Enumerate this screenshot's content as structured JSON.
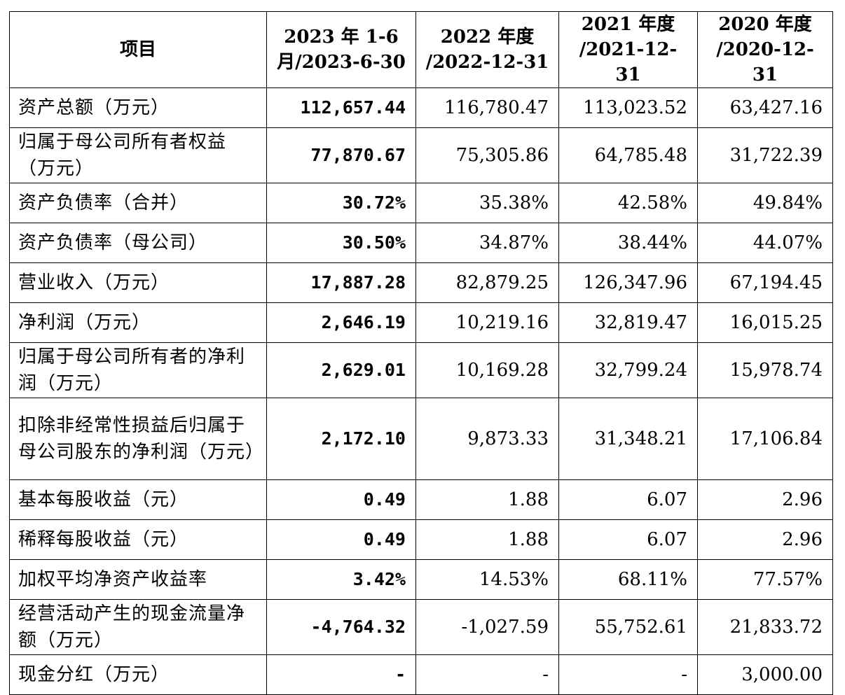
{
  "headers": {
    "item": "项目",
    "c1": [
      "2023 年 1-6",
      "月/2023-6-30"
    ],
    "c2": [
      "2022 年度",
      "/2022-12-31"
    ],
    "c3": [
      "2021 年度",
      "/2021-12-31"
    ],
    "c4": [
      "2020 年度",
      "/2020-12-31"
    ]
  },
  "rows": [
    {
      "label": "资产总额（万元）",
      "v1": "112,657.44",
      "v2": "116,780.47",
      "v3": "113,023.52",
      "v4": "63,427.16"
    },
    {
      "label": "归属于母公司所有者权益（万元）",
      "v1": "77,870.67",
      "v2": "75,305.86",
      "v3": "64,785.48",
      "v4": "31,722.39"
    },
    {
      "label": "资产负债率（合并）",
      "v1": "30.72%",
      "v2": "35.38%",
      "v3": "42.58%",
      "v4": "49.84%"
    },
    {
      "label": "资产负债率（母公司）",
      "v1": "30.50%",
      "v2": "34.87%",
      "v3": "38.44%",
      "v4": "44.07%"
    },
    {
      "label": "营业收入（万元）",
      "v1": "17,887.28",
      "v2": "82,879.25",
      "v3": "126,347.96",
      "v4": "67,194.45"
    },
    {
      "label": "净利润（万元）",
      "v1": "2,646.19",
      "v2": "10,219.16",
      "v3": "32,819.47",
      "v4": "16,015.25"
    },
    {
      "label": "归属于母公司所有者的净利润（万元）",
      "v1": "2,629.01",
      "v2": "10,169.28",
      "v3": "32,799.24",
      "v4": "15,978.74"
    },
    {
      "label": "扣除非经常性损益后归属于母公司股东的净利润（万元）",
      "v1": "2,172.10",
      "v2": "9,873.33",
      "v3": "31,348.21",
      "v4": "17,106.84"
    },
    {
      "label": "基本每股收益（元）",
      "v1": "0.49",
      "v2": "1.88",
      "v3": "6.07",
      "v4": "2.96"
    },
    {
      "label": "稀释每股收益（元）",
      "v1": "0.49",
      "v2": "1.88",
      "v3": "6.07",
      "v4": "2.96"
    },
    {
      "label": "加权平均净资产收益率",
      "v1": "3.42%",
      "v2": "14.53%",
      "v3": "68.11%",
      "v4": "77.57%"
    },
    {
      "label": "经营活动产生的现金流量净额（万元）",
      "v1": "-4,764.32",
      "v2": "-1,027.59",
      "v3": "55,752.61",
      "v4": "21,833.72"
    },
    {
      "label": "现金分红（万元）",
      "v1": "-",
      "v2": "-",
      "v3": "-",
      "v4": "3,000.00"
    }
  ]
}
